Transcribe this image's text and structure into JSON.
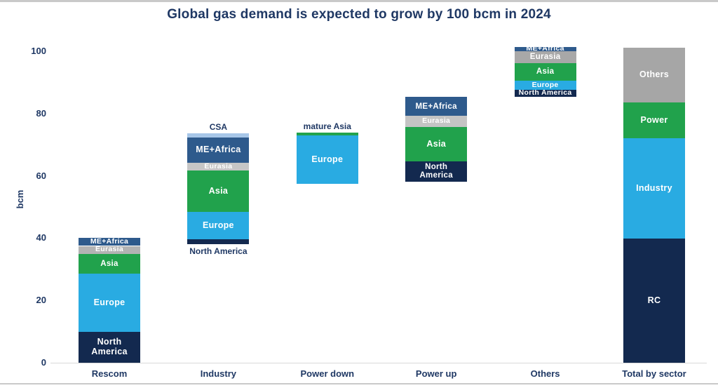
{
  "chart_data": {
    "type": "bar",
    "subtype": "stacked-waterfall",
    "title": "Global gas demand is expected to grow by 100 bcm in 2024",
    "xlabel": "",
    "ylabel": "bcm",
    "ylim": [
      0,
      104
    ],
    "yticks": [
      0,
      20,
      40,
      60,
      80,
      100
    ],
    "grid": false,
    "legend_position": "none",
    "ink_color": "#1f3864",
    "axis_line_color": "#d9d9d9",
    "frame_border_color": "#c9c9c9",
    "categories": [
      "Rescom",
      "Industry",
      "Power down",
      "Power up",
      "Others",
      "Total by sector"
    ],
    "bars": [
      {
        "category": "Rescom",
        "base": 0,
        "top": 40,
        "segments": [
          {
            "name": "North America",
            "label": "North\nAmerica",
            "value": 10,
            "color": "#13294f",
            "label_pos": "inside"
          },
          {
            "name": "Europe",
            "label": "Europe",
            "value": 18.5,
            "color": "#29abe2",
            "label_pos": "inside"
          },
          {
            "name": "Asia",
            "label": "Asia",
            "value": 6.5,
            "color": "#21a24c",
            "label_pos": "inside"
          },
          {
            "name": "Eurasia",
            "label": "Eurasia",
            "value": 2.5,
            "color": "#b3b3b3",
            "label_pos": "inside"
          },
          {
            "name": "ME+Africa",
            "label": "ME+Africa",
            "value": 2.5,
            "color": "#2e5a8c",
            "label_pos": "inside"
          }
        ]
      },
      {
        "category": "Industry",
        "base": 38,
        "top": 73.6,
        "segments": [
          {
            "name": "North America",
            "label": "North America",
            "value": 1.6,
            "color": "#13294f",
            "label_pos": "below"
          },
          {
            "name": "Europe",
            "label": "Europe",
            "value": 8.8,
            "color": "#29abe2",
            "label_pos": "inside"
          },
          {
            "name": "Asia",
            "label": "Asia",
            "value": 13.3,
            "color": "#21a24c",
            "label_pos": "inside"
          },
          {
            "name": "Eurasia",
            "label": "Eurasia",
            "value": 2.5,
            "color": "#c6c6c6",
            "label_pos": "inside"
          },
          {
            "name": "ME+Africa",
            "label": "ME+Africa",
            "value": 8,
            "color": "#2e5a8c",
            "label_pos": "inside"
          },
          {
            "name": "CSA",
            "label": "CSA",
            "value": 1.4,
            "color": "#a7c6e8",
            "label_pos": "above"
          }
        ]
      },
      {
        "category": "Power down",
        "base": 57.5,
        "top": 73.9,
        "segments": [
          {
            "name": "Europe",
            "label": "Europe",
            "value": 15.4,
            "color": "#29abe2",
            "label_pos": "inside"
          },
          {
            "name": "mature Asia",
            "label": "mature Asia",
            "value": 1.0,
            "color": "#21a24c",
            "label_pos": "above"
          }
        ]
      },
      {
        "category": "Power up",
        "base": 58.2,
        "top": 85.3,
        "segments": [
          {
            "name": "North America",
            "label": "North\nAmerica",
            "value": 6.5,
            "color": "#13294f",
            "label_pos": "inside"
          },
          {
            "name": "Asia",
            "label": "Asia",
            "value": 11,
            "color": "#21a24c",
            "label_pos": "inside"
          },
          {
            "name": "Eurasia",
            "label": "Eurasia",
            "value": 3.5,
            "color": "#c4c4c4",
            "label_pos": "inside"
          },
          {
            "name": "ME+Africa",
            "label": "ME+Africa",
            "value": 6.1,
            "color": "#2e5a8c",
            "label_pos": "inside"
          }
        ]
      },
      {
        "category": "Others",
        "base": 85.4,
        "top": 101.4,
        "segments": [
          {
            "name": "North America",
            "label": "North America",
            "value": 2.3,
            "color": "#13294f",
            "label_pos": "inside"
          },
          {
            "name": "Europe",
            "label": "Europe",
            "value": 2.8,
            "color": "#29abe2",
            "label_pos": "inside"
          },
          {
            "name": "Asia",
            "label": "Asia",
            "value": 5.7,
            "color": "#21a24c",
            "label_pos": "inside"
          },
          {
            "name": "Eurasia",
            "label": "Eurasia",
            "value": 3.7,
            "color": "#a8a8a8",
            "label_pos": "inside"
          },
          {
            "name": "ME+Africa",
            "label": "ME+Africa",
            "value": 1.5,
            "color": "#2e5a8c",
            "label_pos": "inside"
          }
        ]
      },
      {
        "category": "Total by sector",
        "base": 0,
        "top": 101.2,
        "segments": [
          {
            "name": "RC",
            "label": "RC",
            "value": 39.8,
            "color": "#13294f",
            "label_pos": "inside"
          },
          {
            "name": "Industry",
            "label": "Industry",
            "value": 32.3,
            "color": "#29abe2",
            "label_pos": "inside"
          },
          {
            "name": "Power",
            "label": "Power",
            "value": 11.4,
            "color": "#21a24c",
            "label_pos": "inside"
          },
          {
            "name": "Others",
            "label": "Others",
            "value": 17.7,
            "color": "#a6a6a6",
            "label_pos": "inside"
          }
        ]
      }
    ]
  }
}
